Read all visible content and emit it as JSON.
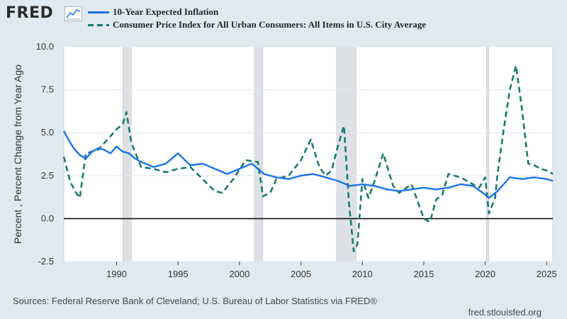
{
  "brand": {
    "logo_text": "FRED",
    "logo_icon": "trend-line-icon"
  },
  "chart_data": {
    "type": "line",
    "title": "",
    "xlabel": "",
    "ylabel": "Percent , Percent Change from Year Ago",
    "xlim": [
      1985.7,
      2025.5
    ],
    "ylim": [
      -2.5,
      10.0
    ],
    "yticks": [
      -2.5,
      0.0,
      2.5,
      5.0,
      7.5,
      10.0
    ],
    "ytick_labels": [
      "-2.5",
      "0.0",
      "2.5",
      "5.0",
      "7.5",
      "10.0"
    ],
    "xticks": [
      1990,
      1995,
      2000,
      2005,
      2010,
      2015,
      2020,
      2025
    ],
    "xtick_labels": [
      "1990",
      "1995",
      "2000",
      "2005",
      "2010",
      "2015",
      "2020",
      "2025"
    ],
    "grid": "horizontal",
    "zero_line": 0,
    "recessions": [
      [
        1990.5,
        1991.2
      ],
      [
        2001.2,
        2001.9
      ],
      [
        2007.9,
        2009.5
      ],
      [
        2020.1,
        2020.3
      ]
    ],
    "series": [
      {
        "name": "10-Year Expected Inflation",
        "style": "solid",
        "color": "#1a73e8",
        "x": [
          1985.7,
          1986.0,
          1986.5,
          1987.0,
          1987.5,
          1988.0,
          1988.5,
          1989.0,
          1989.5,
          1990.0,
          1990.5,
          1991.0,
          1991.5,
          1992.0,
          1993.0,
          1994.0,
          1995.0,
          1996.0,
          1997.0,
          1998.0,
          1999.0,
          2000.0,
          2001.0,
          2002.0,
          2003.0,
          2004.0,
          2005.0,
          2006.0,
          2007.0,
          2008.0,
          2009.0,
          2010.0,
          2011.0,
          2012.0,
          2013.0,
          2014.0,
          2015.0,
          2016.0,
          2017.0,
          2018.0,
          2019.0,
          2020.0,
          2020.3,
          2021.0,
          2022.0,
          2023.0,
          2024.0,
          2025.0,
          2025.5
        ],
        "values": [
          5.1,
          4.7,
          4.1,
          3.7,
          3.5,
          3.9,
          4.1,
          4.0,
          3.8,
          4.2,
          3.9,
          3.8,
          3.5,
          3.3,
          3.0,
          3.2,
          3.8,
          3.1,
          3.2,
          2.9,
          2.6,
          2.9,
          3.2,
          2.6,
          2.4,
          2.3,
          2.5,
          2.6,
          2.4,
          2.2,
          1.9,
          2.0,
          1.9,
          1.7,
          1.6,
          1.7,
          1.8,
          1.7,
          1.8,
          2.0,
          1.9,
          1.4,
          1.2,
          1.6,
          2.4,
          2.3,
          2.4,
          2.3,
          2.2
        ]
      },
      {
        "name": "Consumer Price Index for All Urban Consumers: All Items in U.S. City Average",
        "style": "dashed",
        "color": "#1a7a72",
        "x": [
          1985.7,
          1986.2,
          1986.6,
          1987.0,
          1987.5,
          1988.5,
          1989.5,
          1990.0,
          1990.5,
          1990.8,
          1991.2,
          1991.6,
          1992.0,
          1993.0,
          1994.0,
          1995.0,
          1996.0,
          1997.0,
          1998.0,
          1998.6,
          1999.5,
          2000.5,
          2001.5,
          2001.9,
          2002.5,
          2003.0,
          2004.0,
          2005.0,
          2005.8,
          2006.5,
          2007.0,
          2007.5,
          2008.0,
          2008.5,
          2008.9,
          2009.3,
          2009.6,
          2010.0,
          2010.5,
          2011.0,
          2011.7,
          2012.5,
          2013.0,
          2014.0,
          2015.0,
          2015.5,
          2016.0,
          2016.5,
          2017.0,
          2018.0,
          2019.0,
          2019.5,
          2020.0,
          2020.3,
          2020.8,
          2021.0,
          2021.5,
          2022.0,
          2022.5,
          2023.0,
          2023.5,
          2024.0,
          2024.5,
          2025.0,
          2025.5
        ],
        "values": [
          3.6,
          2.2,
          1.6,
          1.2,
          3.8,
          4.0,
          4.8,
          5.2,
          5.5,
          6.2,
          4.4,
          3.7,
          3.0,
          2.9,
          2.7,
          2.9,
          3.0,
          2.3,
          1.6,
          1.5,
          2.3,
          3.4,
          3.3,
          1.3,
          1.5,
          2.3,
          2.5,
          3.4,
          4.6,
          3.0,
          2.5,
          2.8,
          4.2,
          5.4,
          1.0,
          -1.9,
          -1.5,
          2.3,
          1.2,
          2.2,
          3.8,
          1.9,
          1.5,
          2.0,
          0.0,
          -0.2,
          1.1,
          1.4,
          2.6,
          2.4,
          2.0,
          1.8,
          2.4,
          0.3,
          1.2,
          2.6,
          5.2,
          7.5,
          8.9,
          6.3,
          3.2,
          3.1,
          2.9,
          2.8,
          2.6
        ]
      }
    ]
  },
  "footer": {
    "sources": "Sources: Federal Reserve Bank of Cleveland; U.S. Bureau of Labor Statistics via FRED®",
    "url": "fred.stlouisfed.org"
  }
}
